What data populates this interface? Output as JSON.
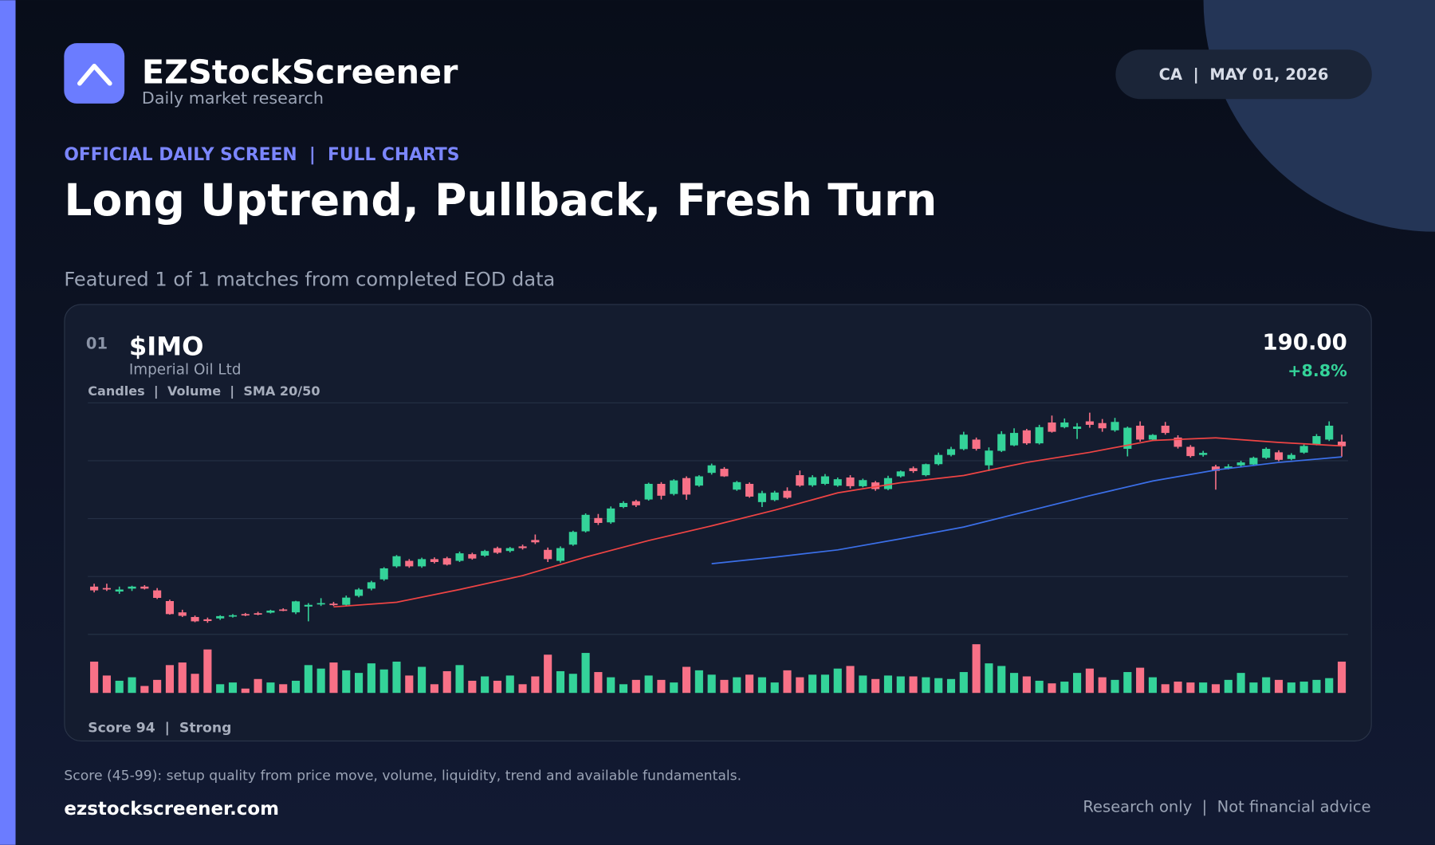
{
  "header": {
    "brand": "EZStockScreener",
    "tagline": "Daily market research",
    "badge": "CA  |  MAY 01, 2026",
    "kicker": "OFFICIAL DAILY SCREEN  |  FULL CHARTS",
    "headline": "Long Uptrend, Pullback, Fresh Turn",
    "subhead": "Featured 1 of 1 matches from completed EOD data"
  },
  "card": {
    "rank": "01",
    "ticker": "$IMO",
    "company": "Imperial Oil Ltd",
    "layers": "Candles  |  Volume  |  SMA 20/50",
    "price": "190.00",
    "change": "+8.8%",
    "score": "Score 94  |  Strong"
  },
  "footer": {
    "note": "Score (45-99): setup quality from price move, volume, liquidity, trend and available fundamentals.",
    "site": "ezstockscreener.com",
    "disclaimer": "Research only  |  Not financial advice"
  },
  "chart_data": {
    "type": "candlestick",
    "up_color": "#34d399",
    "down_color": "#f87187",
    "grid": true,
    "ylim": [
      125,
      205
    ],
    "yticks": [
      125,
      145,
      165,
      185,
      205
    ],
    "vlim": [
      0,
      60
    ],
    "candles": [
      [
        141.5,
        142.5,
        139.5,
        140.2
      ],
      [
        141,
        142.5,
        140,
        140.5
      ],
      [
        139.8,
        141.5,
        139,
        140.5
      ],
      [
        140.8,
        141.8,
        140,
        141.5
      ],
      [
        141.5,
        142,
        140.5,
        140.8
      ],
      [
        140.2,
        141,
        137.2,
        137.6
      ],
      [
        136.5,
        137,
        131.8,
        132
      ],
      [
        132.6,
        133.5,
        131,
        131.4
      ],
      [
        131,
        131.5,
        129.2,
        129.5
      ],
      [
        130.2,
        130.8,
        129,
        129.6
      ],
      [
        130.5,
        131.6,
        130,
        131.3
      ],
      [
        131.2,
        132,
        130.8,
        131.6
      ],
      [
        132,
        132.4,
        131.3,
        131.6
      ],
      [
        132.3,
        132.8,
        131.6,
        132
      ],
      [
        132.5,
        133.5,
        132.2,
        133.2
      ],
      [
        133.6,
        134,
        133,
        133.2
      ],
      [
        132.6,
        136.6,
        132,
        136.4
      ],
      [
        134.6,
        135.8,
        129.5,
        135.2
      ],
      [
        135.4,
        137.5,
        134.8,
        135.8
      ],
      [
        135.6,
        136.2,
        134.8,
        135.1
      ],
      [
        135.2,
        138.4,
        134.8,
        137.7
      ],
      [
        138.3,
        141,
        137.8,
        140.5
      ],
      [
        140.8,
        143.5,
        140.2,
        143
      ],
      [
        144,
        148.2,
        143.5,
        147.8
      ],
      [
        148.5,
        152.4,
        148,
        152
      ],
      [
        150.4,
        151,
        148,
        148.5
      ],
      [
        148.5,
        151.5,
        148,
        151
      ],
      [
        151,
        151.6,
        149.5,
        150
      ],
      [
        151.3,
        151.8,
        148.8,
        149.1
      ],
      [
        150.4,
        153.6,
        150,
        153
      ],
      [
        152.7,
        153.2,
        150.8,
        151.2
      ],
      [
        152.2,
        154.2,
        151.8,
        153.8
      ],
      [
        154.8,
        155.3,
        152.8,
        153.2
      ],
      [
        153.8,
        155.2,
        153.3,
        154.8
      ],
      [
        155.4,
        156,
        154.3,
        154.8
      ],
      [
        157.6,
        159.5,
        156.2,
        156.8
      ],
      [
        154.2,
        155,
        150,
        151
      ],
      [
        150.4,
        155.4,
        149.8,
        154.8
      ],
      [
        156,
        160.8,
        155.6,
        160.4
      ],
      [
        160.6,
        166.8,
        160.2,
        166.3
      ],
      [
        165.2,
        166.6,
        162.8,
        163.5
      ],
      [
        163.7,
        169.2,
        163.2,
        168.5
      ],
      [
        169,
        171,
        168.6,
        170.4
      ],
      [
        171,
        171.5,
        169,
        169.6
      ],
      [
        171.6,
        177.4,
        171.2,
        177
      ],
      [
        177,
        177.6,
        171.6,
        172.9
      ],
      [
        173.5,
        178.6,
        173,
        178.2
      ],
      [
        179,
        179.6,
        171.5,
        173.3
      ],
      [
        176.4,
        180,
        176,
        179.6
      ],
      [
        180.8,
        184,
        180.2,
        183.4
      ],
      [
        182.2,
        182.8,
        179.4,
        179.6
      ],
      [
        175,
        178,
        174.6,
        177.6
      ],
      [
        177,
        177.5,
        172.2,
        172.6
      ],
      [
        170.7,
        174.6,
        169,
        173.8
      ],
      [
        171.4,
        174.6,
        171,
        174
      ],
      [
        174.6,
        175.8,
        171.8,
        172.2
      ],
      [
        180,
        181.6,
        176,
        176.4
      ],
      [
        176.5,
        180,
        176,
        179.3
      ],
      [
        177,
        180.4,
        176.6,
        179.6
      ],
      [
        176.4,
        179.2,
        176,
        178.6
      ],
      [
        179.2,
        180,
        175.4,
        176.2
      ],
      [
        176.2,
        178.8,
        175.8,
        178.3
      ],
      [
        177.5,
        178,
        174.6,
        175.2
      ],
      [
        175.2,
        179.8,
        174.8,
        179
      ],
      [
        179.6,
        181.6,
        179.2,
        181.3
      ],
      [
        182.4,
        183,
        180.8,
        181.4
      ],
      [
        180,
        184,
        179.6,
        183.8
      ],
      [
        183.8,
        187.8,
        183.4,
        187
      ],
      [
        187,
        189.8,
        186.5,
        189
      ],
      [
        189,
        195,
        188.6,
        194
      ],
      [
        192.3,
        193,
        188.5,
        189.1
      ],
      [
        183.4,
        189.6,
        181.4,
        188.5
      ],
      [
        188.4,
        195.2,
        188,
        194.2
      ],
      [
        190.3,
        196.2,
        190,
        194.6
      ],
      [
        195.5,
        196,
        190.5,
        191
      ],
      [
        191,
        197.4,
        190.6,
        196.6
      ],
      [
        198.2,
        200.6,
        194.7,
        195
      ],
      [
        196.6,
        199.6,
        196.2,
        198.2
      ],
      [
        196,
        198,
        192.5,
        196.8
      ],
      [
        198.6,
        201.6,
        196.4,
        197.4
      ],
      [
        198,
        199.4,
        195,
        196.2
      ],
      [
        195.5,
        199.8,
        195,
        198.4
      ],
      [
        189.1,
        196.8,
        186.5,
        196.4
      ],
      [
        197.1,
        198.6,
        191.6,
        192.3
      ],
      [
        192.3,
        194.2,
        191.8,
        193.9
      ],
      [
        197.1,
        198.4,
        194,
        194.6
      ],
      [
        193,
        193.8,
        189.2,
        189.8
      ],
      [
        189.8,
        190.4,
        186.1,
        186.6
      ],
      [
        187,
        188.4,
        186.4,
        187.7
      ],
      [
        183,
        183.6,
        175,
        181.5
      ],
      [
        182.4,
        183.8,
        182,
        183
      ],
      [
        183.4,
        185,
        183,
        184.4
      ],
      [
        183.7,
        186.4,
        183.3,
        186
      ],
      [
        186,
        189.6,
        185.6,
        189.1
      ],
      [
        187.9,
        188.6,
        184.8,
        185.3
      ],
      [
        185.6,
        187.6,
        185.2,
        187
      ],
      [
        187.8,
        190.6,
        187.4,
        190.1
      ],
      [
        190.7,
        194.2,
        190.3,
        193.5
      ],
      [
        192.3,
        198.6,
        191.8,
        197.1
      ],
      [
        191.6,
        194,
        186.4,
        190
      ]
    ],
    "volume": [
      36,
      20,
      14,
      18,
      8,
      15,
      32,
      35,
      22,
      50,
      10,
      12,
      5,
      16,
      12,
      10,
      14,
      32,
      28,
      35,
      26,
      23,
      34,
      27,
      36,
      20,
      30,
      10,
      25,
      32,
      14,
      19,
      14,
      20,
      10,
      19,
      44,
      25,
      22,
      46,
      24,
      18,
      10,
      15,
      20,
      15,
      12,
      30,
      26,
      21,
      15,
      18,
      21,
      18,
      12,
      26,
      18,
      21,
      21,
      28,
      31,
      20,
      16,
      20,
      19,
      19,
      18,
      17,
      16,
      24,
      56,
      34,
      31,
      23,
      19,
      14,
      11,
      13,
      23,
      28,
      18,
      15,
      24,
      29,
      18,
      10,
      13,
      12,
      12,
      10,
      15,
      23,
      12,
      18,
      15,
      12,
      13,
      15,
      17,
      36
    ],
    "sma": [
      {
        "color": "#ef4444",
        "x": [
          20,
          25,
          30,
          35,
          40,
          45,
          50,
          55,
          60,
          65,
          70,
          75,
          80,
          85,
          90,
          95,
          100
        ],
        "values": [
          134.5,
          136.1,
          140.5,
          145.3,
          151.7,
          157.4,
          162.5,
          167.9,
          173.9,
          177.4,
          179.9,
          184.4,
          187.9,
          192,
          192.9,
          191.3,
          190.1
        ]
      },
      {
        "color": "#3b6fe8",
        "x": [
          50,
          55,
          60,
          65,
          70,
          75,
          80,
          85,
          90,
          95,
          100
        ],
        "values": [
          149.4,
          151.7,
          154.2,
          158,
          162.1,
          167.5,
          172.9,
          178,
          181.8,
          184.4,
          186.3
        ]
      }
    ]
  }
}
